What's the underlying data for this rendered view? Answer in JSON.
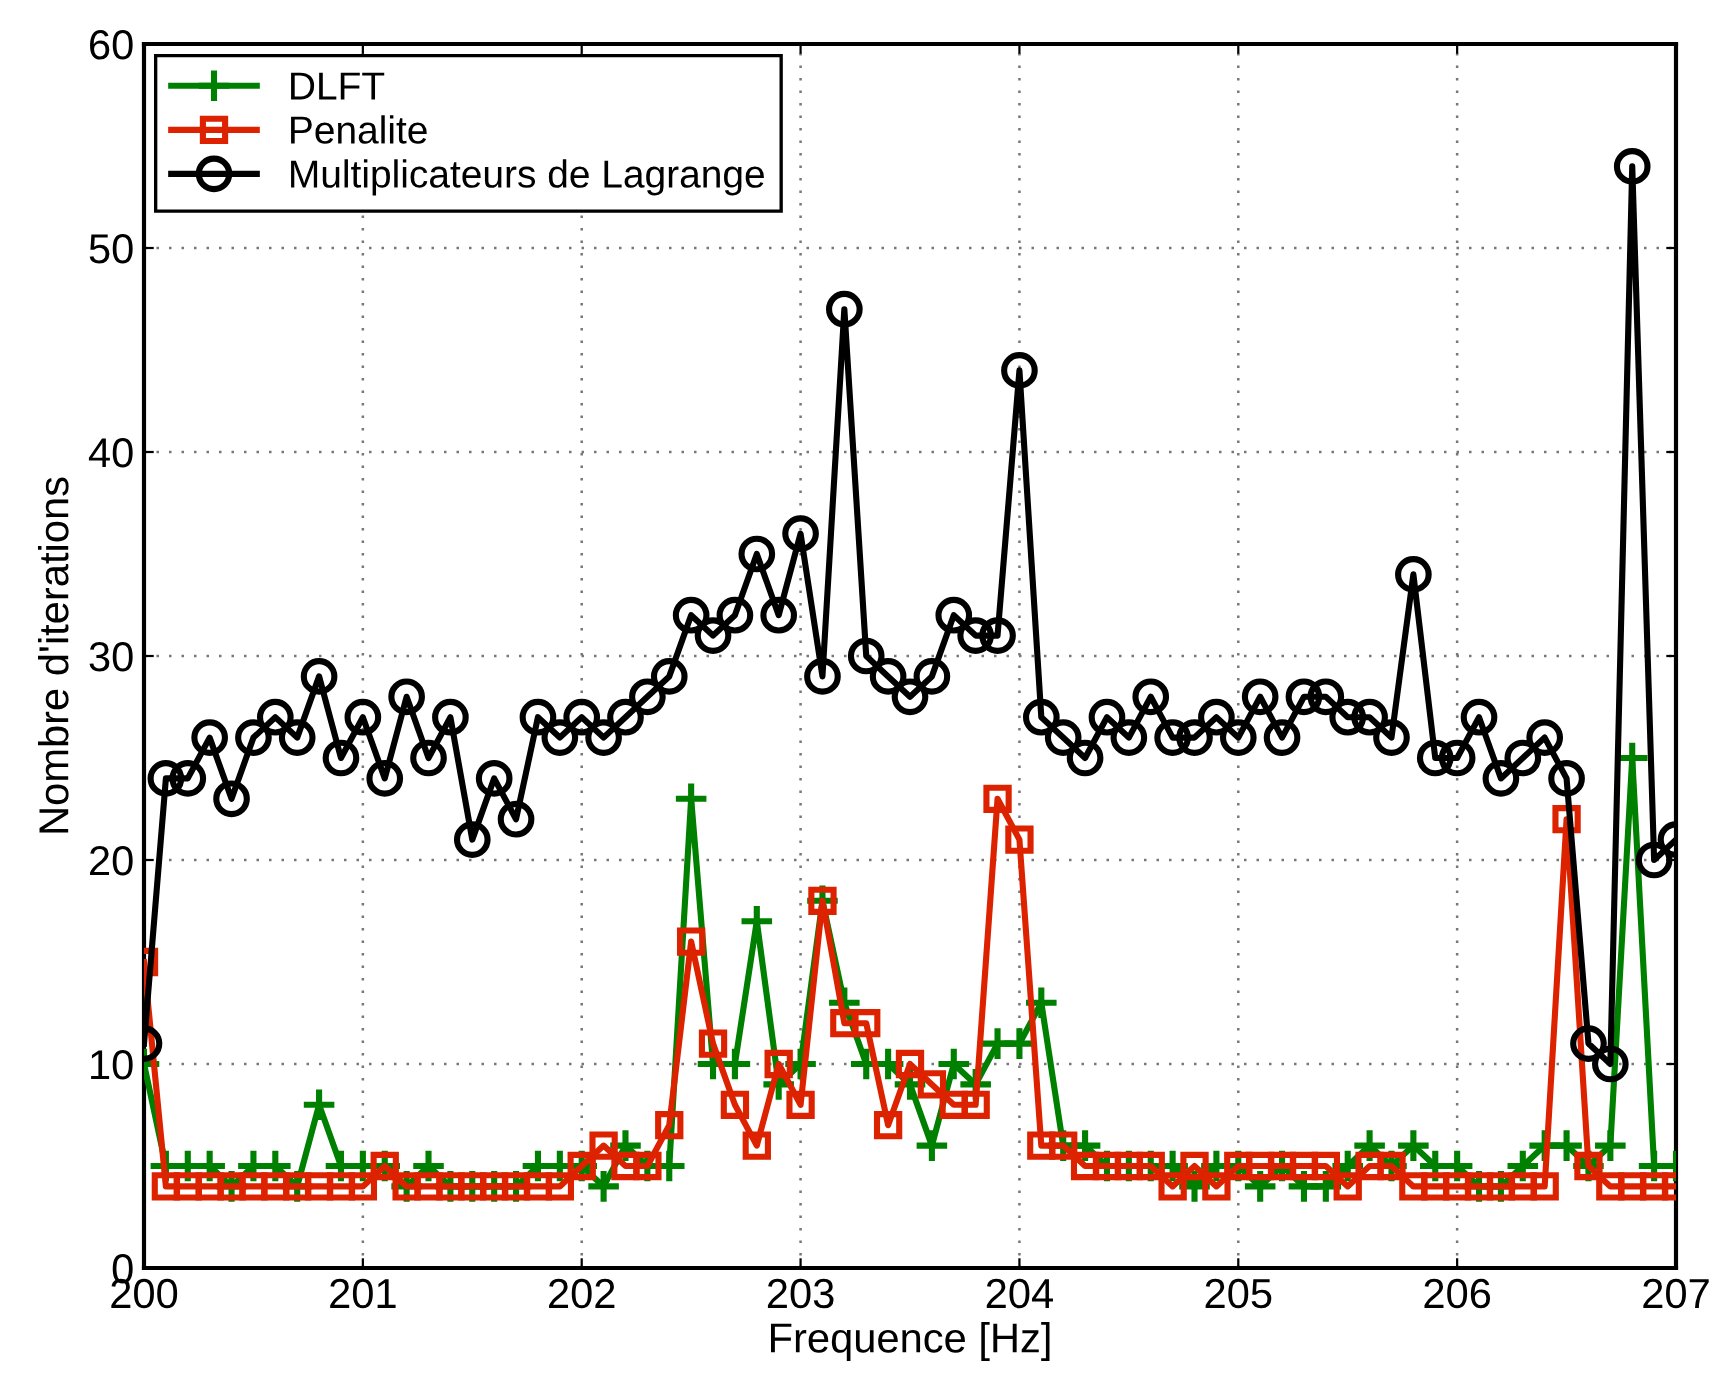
{
  "chart_data": {
    "type": "line",
    "xlabel": "Frequence [Hz]",
    "ylabel": "Nombre d'iterations",
    "xlim": [
      200,
      207
    ],
    "ylim": [
      0,
      60
    ],
    "xticks": [
      200,
      201,
      202,
      203,
      204,
      205,
      206,
      207
    ],
    "yticks": [
      0,
      10,
      20,
      30,
      40,
      50,
      60
    ],
    "grid": true,
    "legend": "top left",
    "x": [
      200.0,
      200.1,
      200.2,
      200.3,
      200.4,
      200.5,
      200.6,
      200.7,
      200.8,
      200.9,
      201.0,
      201.1,
      201.2,
      201.3,
      201.4,
      201.5,
      201.6,
      201.7,
      201.8,
      201.9,
      202.0,
      202.1,
      202.2,
      202.3,
      202.4,
      202.5,
      202.6,
      202.7,
      202.8,
      202.9,
      203.0,
      203.1,
      203.2,
      203.3,
      203.4,
      203.5,
      203.6,
      203.7,
      203.8,
      203.9,
      204.0,
      204.1,
      204.2,
      204.3,
      204.4,
      204.5,
      204.6,
      204.7,
      204.8,
      204.9,
      205.0,
      205.1,
      205.2,
      205.3,
      205.4,
      205.5,
      205.6,
      205.7,
      205.8,
      205.9,
      206.0,
      206.1,
      206.2,
      206.3,
      206.4,
      206.5,
      206.6,
      206.7,
      206.8,
      206.9,
      207.0
    ],
    "series": [
      {
        "name": "DLFT",
        "color": "#008000",
        "marker": "cross",
        "values": [
          10,
          5,
          5,
          5,
          4,
          5,
          5,
          4,
          8,
          5,
          5,
          5,
          4,
          5,
          4,
          4,
          4,
          4,
          5,
          5,
          5,
          4,
          6,
          5,
          5,
          23,
          10,
          10,
          17,
          9,
          10,
          18,
          13,
          10,
          10,
          9,
          6,
          10,
          9,
          11,
          11,
          13,
          6,
          6,
          5,
          5,
          5,
          5,
          4,
          5,
          5,
          4,
          5,
          4,
          4,
          5,
          6,
          5,
          6,
          5,
          5,
          4,
          4,
          5,
          6,
          6,
          5,
          6,
          25,
          5,
          5
        ]
      },
      {
        "name": "Penalite",
        "color": "#dd2200",
        "marker": "square",
        "values": [
          15,
          4,
          4,
          4,
          4,
          4,
          4,
          4,
          4,
          4,
          4,
          5,
          4,
          4,
          4,
          4,
          4,
          4,
          4,
          4,
          5,
          6,
          5,
          5,
          7,
          16,
          11,
          8,
          6,
          10,
          8,
          18,
          12,
          12,
          7,
          10,
          9,
          8,
          8,
          23,
          21,
          6,
          6,
          5,
          5,
          5,
          5,
          4,
          5,
          4,
          5,
          5,
          5,
          5,
          5,
          4,
          5,
          5,
          4,
          4,
          4,
          4,
          4,
          4,
          4,
          22,
          5,
          4,
          4,
          4,
          4
        ]
      },
      {
        "name": "Multiplicateurs de Lagrange",
        "color": "#000000",
        "marker": "circle",
        "values": [
          11,
          24,
          24,
          26,
          23,
          26,
          27,
          26,
          29,
          25,
          27,
          24,
          28,
          25,
          27,
          21,
          24,
          22,
          27,
          26,
          27,
          26,
          27,
          28,
          29,
          32,
          31,
          32,
          35,
          32,
          36,
          29,
          47,
          30,
          29,
          28,
          29,
          32,
          31,
          31,
          44,
          27,
          26,
          25,
          27,
          26,
          28,
          26,
          26,
          27,
          26,
          28,
          26,
          28,
          28,
          27,
          27,
          26,
          34,
          25,
          25,
          27,
          24,
          25,
          26,
          24,
          11,
          10,
          54,
          20,
          21
        ]
      }
    ]
  }
}
